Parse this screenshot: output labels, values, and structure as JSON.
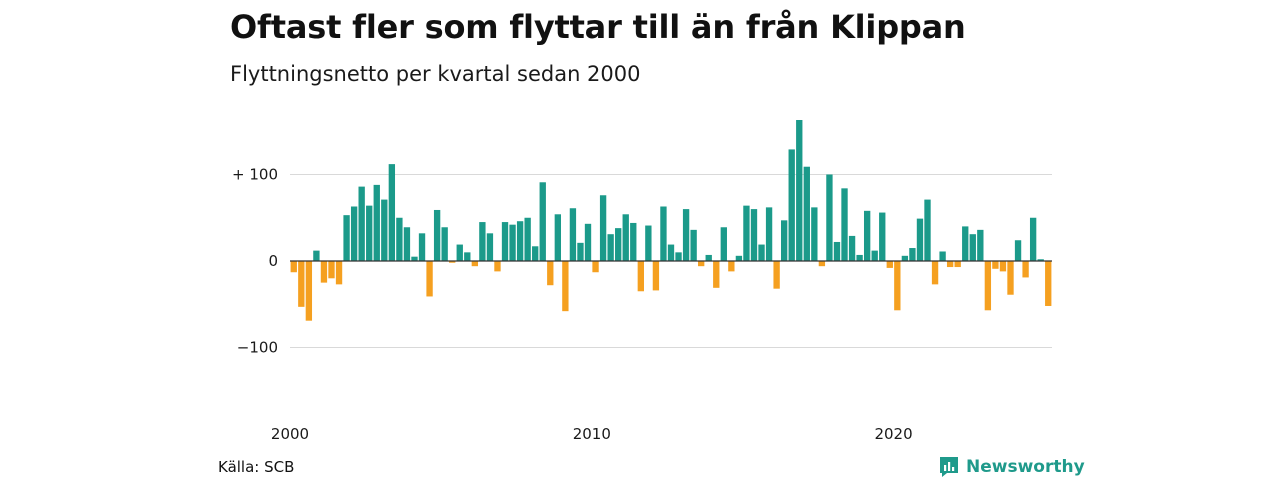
{
  "header": {
    "title": "Oftast fler som flyttar till än från Klippan",
    "subtitle": "Flyttningsnetto per kvartal sedan 2000"
  },
  "footer": {
    "source": "Källa: SCB",
    "brand": "Newsworthy",
    "brand_icon": "bar-chart-logo-icon"
  },
  "colors": {
    "positive": "#1b9a8a",
    "negative": "#f5a020",
    "grid": "#d9d9d9",
    "zero_line": "#333333",
    "brand": "#1f9a8b"
  },
  "chart_data": {
    "type": "bar",
    "title": "Oftast fler som flyttar till än från Klippan",
    "subtitle": "Flyttningsnetto per kvartal sedan 2000",
    "xlabel": "",
    "ylabel": "",
    "x_start": 2000,
    "periods_per_year": 4,
    "x_ticks": [
      {
        "value": 2000,
        "label": "2000"
      },
      {
        "value": 2010,
        "label": "2010"
      },
      {
        "value": 2020,
        "label": "2020"
      }
    ],
    "y_ticks": [
      {
        "value": 100,
        "label": "+ 100"
      },
      {
        "value": 0,
        "label": "0"
      },
      {
        "value": -100,
        "label": "−100"
      }
    ],
    "ylim": [
      -125,
      165
    ],
    "grid": true,
    "values": [
      -13,
      -53,
      -69,
      12,
      -25,
      -20,
      -27,
      53,
      63,
      86,
      64,
      88,
      71,
      112,
      50,
      39,
      5,
      32,
      -41,
      59,
      39,
      -2,
      19,
      10,
      -6,
      45,
      32,
      -12,
      45,
      42,
      46,
      50,
      17,
      91,
      -28,
      54,
      -58,
      61,
      21,
      43,
      -13,
      76,
      31,
      38,
      54,
      44,
      -35,
      41,
      -34,
      63,
      19,
      10,
      60,
      36,
      -6,
      7,
      -31,
      39,
      -12,
      6,
      64,
      60,
      19,
      62,
      -32,
      47,
      129,
      163,
      109,
      62,
      -6,
      100,
      22,
      84,
      29,
      7,
      58,
      12,
      56,
      -8,
      -57,
      6,
      15,
      49,
      71,
      -27,
      11,
      -7,
      -7,
      40,
      31,
      36,
      -57,
      -9,
      -12,
      -39,
      24,
      -19,
      50,
      2,
      -52
    ]
  }
}
